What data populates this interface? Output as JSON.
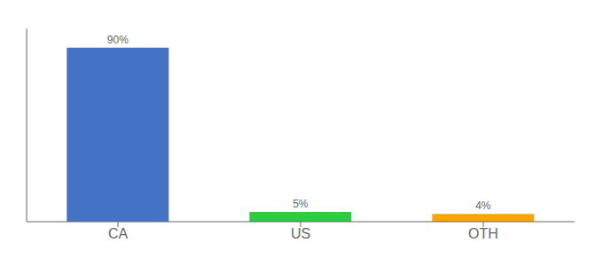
{
  "chart_data": {
    "type": "bar",
    "categories": [
      "CA",
      "US",
      "OTH"
    ],
    "values": [
      90,
      5,
      4
    ],
    "value_labels": [
      "90%",
      "5%",
      "4%"
    ],
    "data_labels": true,
    "colors": [
      "#4472C4",
      "#2ECC40",
      "#FFA500"
    ],
    "ylim": [
      0,
      100
    ],
    "tick_labels": "x"
  }
}
